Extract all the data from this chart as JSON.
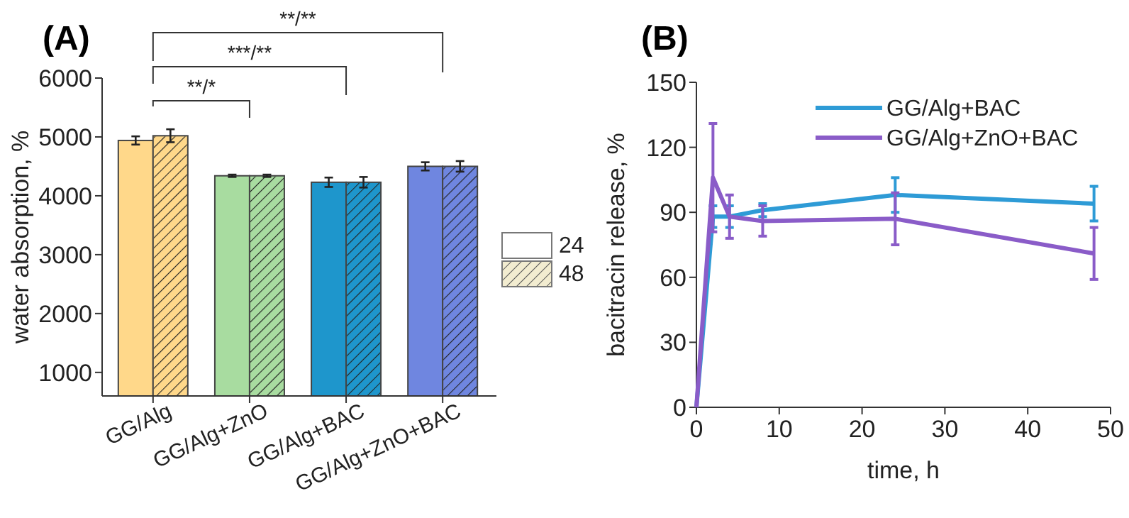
{
  "chart_data": [
    {
      "type": "bar",
      "title": "(A)",
      "ylabel": "water absorption, %",
      "categories": [
        "GG/Alg",
        "GG/Alg+ZnO",
        "GG/Alg+BAC",
        "GG/Alg+ZnO+BAC"
      ],
      "series": [
        {
          "name": "24",
          "color": "#ffffff",
          "colors": [
            "#ffd88a",
            "#a8dca0",
            "#1e96cc",
            "#6f86e0"
          ],
          "values": [
            4940,
            4340,
            4230,
            4500
          ],
          "errors": [
            70,
            20,
            80,
            70
          ]
        },
        {
          "name": "48",
          "color": "#f2ecd0",
          "colors": [
            "#ffd88a",
            "#a8dca0",
            "#1e96cc",
            "#6f86e0"
          ],
          "values": [
            5020,
            4340,
            4230,
            4500
          ],
          "errors": [
            110,
            20,
            90,
            90
          ]
        }
      ],
      "ylim": [
        600,
        6000
      ],
      "yticks": [
        1000,
        2000,
        3000,
        4000,
        5000,
        6000
      ],
      "legend": "right",
      "annotations": [
        "**/*",
        "***/**",
        "**/**"
      ]
    },
    {
      "type": "line",
      "title": "(B)",
      "xlabel": "time, h",
      "ylabel": "bacitracin release, %",
      "series": [
        {
          "name": "GG/Alg+BAC",
          "color": "#2e9bd6",
          "x": [
            0,
            2,
            4,
            8,
            24,
            48
          ],
          "values": [
            0,
            88,
            88,
            91,
            98,
            94
          ],
          "errors": [
            null,
            5,
            5,
            3,
            8,
            8
          ]
        },
        {
          "name": "GG/Alg+ZnO+BAC",
          "color": "#8a5cc8",
          "x": [
            0,
            2,
            4,
            8,
            24,
            48
          ],
          "values": [
            0,
            106,
            88,
            86,
            87,
            71
          ],
          "errors": [
            null,
            25,
            10,
            7,
            12,
            12
          ]
        }
      ],
      "xlim": [
        0,
        50
      ],
      "xticks": [
        0,
        10,
        20,
        30,
        40,
        50
      ],
      "ylim": [
        0,
        150
      ],
      "yticks": [
        0,
        30,
        60,
        90,
        120,
        150
      ],
      "legend": "top right",
      "marker": "none",
      "line_style": "solid"
    }
  ]
}
